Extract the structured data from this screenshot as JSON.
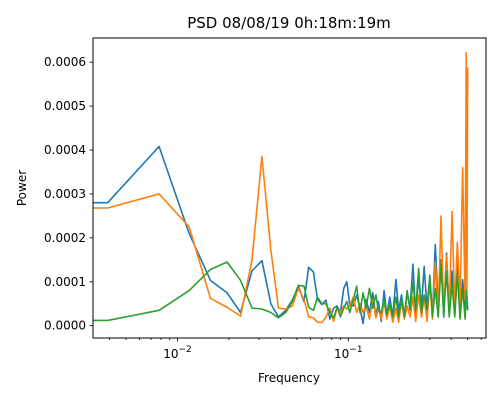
{
  "chart_data": {
    "type": "line",
    "title": "PSD 08/08/19 0h:18m:19m",
    "xlabel": "Frequency",
    "ylabel": "Power",
    "xscale": "log",
    "xlim": [
      0.0032,
      0.64
    ],
    "ylim": [
      -2.8e-05,
      0.000655
    ],
    "xticks": [
      {
        "value": 0.01,
        "base": "10",
        "exp": "−2"
      },
      {
        "value": 0.1,
        "base": "10",
        "exp": "−1"
      }
    ],
    "minor_xticks": [
      0.004,
      0.005,
      0.006,
      0.007,
      0.008,
      0.009,
      0.02,
      0.03,
      0.04,
      0.05,
      0.06,
      0.07,
      0.08,
      0.09,
      0.2,
      0.3,
      0.4,
      0.5,
      0.6
    ],
    "yticks": [
      {
        "value": 0,
        "label": "0.0000"
      },
      {
        "value": 0.0001,
        "label": "0.0001"
      },
      {
        "value": 0.0002,
        "label": "0.0002"
      },
      {
        "value": 0.0003,
        "label": "0.0003"
      },
      {
        "value": 0.0004,
        "label": "0.0004"
      },
      {
        "value": 0.0005,
        "label": "0.0005"
      },
      {
        "value": 0.0006,
        "label": "0.0006"
      }
    ],
    "grid": false,
    "legend": "none",
    "series": [
      {
        "color": "#1f77b4",
        "points": [
          [
            0.0032,
            0.00028
          ],
          [
            0.0039,
            0.00028
          ],
          [
            0.0078,
            0.000408
          ],
          [
            0.0117,
            0.00021
          ],
          [
            0.0156,
            0.000103
          ],
          [
            0.0195,
            7.5e-05
          ],
          [
            0.0234,
            3e-05
          ],
          [
            0.0273,
            0.000125
          ],
          [
            0.0312,
            0.000148
          ],
          [
            0.0352,
            5e-05
          ],
          [
            0.039,
            2e-05
          ],
          [
            0.043,
            3.5e-05
          ],
          [
            0.047,
            5.8e-05
          ],
          [
            0.051,
            9e-05
          ],
          [
            0.055,
            5.5e-05
          ],
          [
            0.0586,
            0.000133
          ],
          [
            0.0625,
            0.000122
          ],
          [
            0.066,
            6e-05
          ],
          [
            0.07,
            4.8e-05
          ],
          [
            0.074,
            5.8e-05
          ],
          [
            0.078,
            1.5e-05
          ],
          [
            0.082,
            4e-05
          ],
          [
            0.086,
            4.5e-05
          ],
          [
            0.09,
            3e-05
          ],
          [
            0.094,
            8.5e-05
          ],
          [
            0.098,
            0.0001
          ],
          [
            0.102,
            4.8e-05
          ],
          [
            0.107,
            4.5e-05
          ],
          [
            0.112,
            7e-05
          ],
          [
            0.117,
            4e-05
          ],
          [
            0.122,
            5e-06
          ],
          [
            0.127,
            6e-05
          ],
          [
            0.133,
            3e-05
          ],
          [
            0.139,
            7.5e-05
          ],
          [
            0.145,
            2e-05
          ],
          [
            0.15,
            5.5e-05
          ],
          [
            0.156,
            1e-05
          ],
          [
            0.162,
            8e-05
          ],
          [
            0.168,
            2.5e-05
          ],
          [
            0.175,
            6.5e-05
          ],
          [
            0.182,
            2e-05
          ],
          [
            0.19,
            0.000105
          ],
          [
            0.197,
            3.5e-05
          ],
          [
            0.205,
            7e-05
          ],
          [
            0.213,
            2e-05
          ],
          [
            0.221,
            7.5e-05
          ],
          [
            0.23,
            4e-05
          ],
          [
            0.239,
            0.00014
          ],
          [
            0.248,
            2.5e-05
          ],
          [
            0.258,
            0.00011
          ],
          [
            0.268,
            4e-05
          ],
          [
            0.278,
            0.000135
          ],
          [
            0.289,
            4e-05
          ],
          [
            0.3,
            0.000115
          ],
          [
            0.311,
            2e-05
          ],
          [
            0.323,
            0.000185
          ],
          [
            0.336,
            4e-05
          ],
          [
            0.349,
            0.00015
          ],
          [
            0.362,
            2e-05
          ],
          [
            0.376,
            0.000165
          ],
          [
            0.39,
            3e-05
          ],
          [
            0.405,
            0.000125
          ],
          [
            0.42,
            2.5e-05
          ],
          [
            0.435,
            0.000145
          ],
          [
            0.451,
            3e-05
          ],
          [
            0.467,
            0.000105
          ],
          [
            0.483,
            4e-05
          ],
          [
            0.492,
            8e-05
          ],
          [
            0.5,
            3.5e-05
          ]
        ]
      },
      {
        "color": "#ff7f0e",
        "points": [
          [
            0.0032,
            0.000268
          ],
          [
            0.0039,
            0.000268
          ],
          [
            0.0078,
            0.0003
          ],
          [
            0.0117,
            0.000225
          ],
          [
            0.0156,
            6.2e-05
          ],
          [
            0.0195,
            4.2e-05
          ],
          [
            0.0234,
            2.2e-05
          ],
          [
            0.0273,
            0.00015
          ],
          [
            0.0312,
            0.000385
          ],
          [
            0.0352,
            0.000172
          ],
          [
            0.039,
            4e-05
          ],
          [
            0.043,
            3.8e-05
          ],
          [
            0.047,
            4.5e-05
          ],
          [
            0.051,
            8.5e-05
          ],
          [
            0.055,
            6e-05
          ],
          [
            0.0586,
            2e-05
          ],
          [
            0.0625,
            1.8e-05
          ],
          [
            0.066,
            8e-06
          ],
          [
            0.07,
            7e-06
          ],
          [
            0.074,
            2e-05
          ],
          [
            0.078,
            4e-05
          ],
          [
            0.082,
            1e-05
          ],
          [
            0.086,
            4e-05
          ],
          [
            0.09,
            3e-05
          ],
          [
            0.094,
            4.5e-05
          ],
          [
            0.098,
            3.8e-05
          ],
          [
            0.102,
            4.5e-05
          ],
          [
            0.107,
            6.5e-05
          ],
          [
            0.112,
            3e-05
          ],
          [
            0.117,
            5e-05
          ],
          [
            0.122,
            3e-05
          ],
          [
            0.127,
            4.5e-05
          ],
          [
            0.133,
            1.5e-05
          ],
          [
            0.139,
            6e-05
          ],
          [
            0.145,
            1.8e-05
          ],
          [
            0.15,
            4e-05
          ],
          [
            0.156,
            1.5e-05
          ],
          [
            0.162,
            5.5e-05
          ],
          [
            0.168,
            1.5e-05
          ],
          [
            0.175,
            4.5e-05
          ],
          [
            0.182,
            8e-06
          ],
          [
            0.19,
            4e-05
          ],
          [
            0.197,
            8e-06
          ],
          [
            0.205,
            5.5e-05
          ],
          [
            0.213,
            1.5e-05
          ],
          [
            0.221,
            4.5e-05
          ],
          [
            0.23,
            2e-05
          ],
          [
            0.239,
            6.5e-05
          ],
          [
            0.248,
            1e-05
          ],
          [
            0.258,
            7e-05
          ],
          [
            0.268,
            2e-05
          ],
          [
            0.278,
            6.5e-05
          ],
          [
            0.289,
            1e-05
          ],
          [
            0.3,
            0.0001
          ],
          [
            0.311,
            1.5e-05
          ],
          [
            0.323,
            0.000145
          ],
          [
            0.336,
            2e-05
          ],
          [
            0.349,
            0.00025
          ],
          [
            0.362,
            3e-05
          ],
          [
            0.376,
            0.00016
          ],
          [
            0.39,
            3e-05
          ],
          [
            0.405,
            0.00026
          ],
          [
            0.42,
            4e-05
          ],
          [
            0.435,
            0.00019
          ],
          [
            0.451,
            5e-05
          ],
          [
            0.467,
            0.00036
          ],
          [
            0.483,
            6e-05
          ],
          [
            0.49,
            0.000622
          ],
          [
            0.495,
            8e-05
          ],
          [
            0.5,
            0.000588
          ]
        ]
      },
      {
        "color": "#2ca02c",
        "points": [
          [
            0.0032,
            1.2e-05
          ],
          [
            0.0039,
            1.2e-05
          ],
          [
            0.0078,
            3.5e-05
          ],
          [
            0.0117,
            8e-05
          ],
          [
            0.0156,
            0.000128
          ],
          [
            0.0195,
            0.000145
          ],
          [
            0.0234,
            0.000103
          ],
          [
            0.0273,
            4e-05
          ],
          [
            0.0312,
            3.8e-05
          ],
          [
            0.0352,
            3e-05
          ],
          [
            0.039,
            1.8e-05
          ],
          [
            0.043,
            3e-05
          ],
          [
            0.047,
            5.5e-05
          ],
          [
            0.051,
            9.2e-05
          ],
          [
            0.055,
            9e-05
          ],
          [
            0.0586,
            4.2e-05
          ],
          [
            0.0625,
            3.5e-05
          ],
          [
            0.066,
            6.5e-05
          ],
          [
            0.07,
            5e-05
          ],
          [
            0.074,
            5e-05
          ],
          [
            0.078,
            3e-05
          ],
          [
            0.082,
            1.8e-05
          ],
          [
            0.086,
            4.2e-05
          ],
          [
            0.09,
            2e-05
          ],
          [
            0.094,
            4e-05
          ],
          [
            0.098,
            5.5e-05
          ],
          [
            0.102,
            3e-05
          ],
          [
            0.107,
            6e-05
          ],
          [
            0.112,
            9e-05
          ],
          [
            0.117,
            3e-05
          ],
          [
            0.122,
            7.5e-05
          ],
          [
            0.127,
            4e-05
          ],
          [
            0.133,
            8.5e-05
          ],
          [
            0.139,
            4e-05
          ],
          [
            0.145,
            7e-05
          ],
          [
            0.15,
            3.5e-05
          ],
          [
            0.156,
            3e-05
          ],
          [
            0.162,
            6e-05
          ],
          [
            0.168,
            2.5e-05
          ],
          [
            0.175,
            5e-05
          ],
          [
            0.182,
            2e-05
          ],
          [
            0.19,
            6.5e-05
          ],
          [
            0.197,
            2e-05
          ],
          [
            0.205,
            6e-05
          ],
          [
            0.213,
            2e-05
          ],
          [
            0.221,
            8e-05
          ],
          [
            0.23,
            3.5e-05
          ],
          [
            0.239,
            0.0001
          ],
          [
            0.248,
            3.5e-05
          ],
          [
            0.258,
            0.00013
          ],
          [
            0.268,
            3e-05
          ],
          [
            0.278,
            7e-05
          ],
          [
            0.289,
            3.5e-05
          ],
          [
            0.3,
            0.00011
          ],
          [
            0.311,
            2e-05
          ],
          [
            0.323,
            8.5e-05
          ],
          [
            0.336,
            2e-05
          ],
          [
            0.349,
            0.00014
          ],
          [
            0.362,
            2.5e-05
          ],
          [
            0.376,
            0.000125
          ],
          [
            0.39,
            2e-05
          ],
          [
            0.405,
            9.5e-05
          ],
          [
            0.42,
            2e-05
          ],
          [
            0.435,
            0.00012
          ],
          [
            0.451,
            1.5e-05
          ],
          [
            0.467,
            8.5e-05
          ],
          [
            0.483,
            1.5e-05
          ],
          [
            0.492,
            8e-05
          ],
          [
            0.5,
            4e-05
          ]
        ]
      }
    ]
  }
}
